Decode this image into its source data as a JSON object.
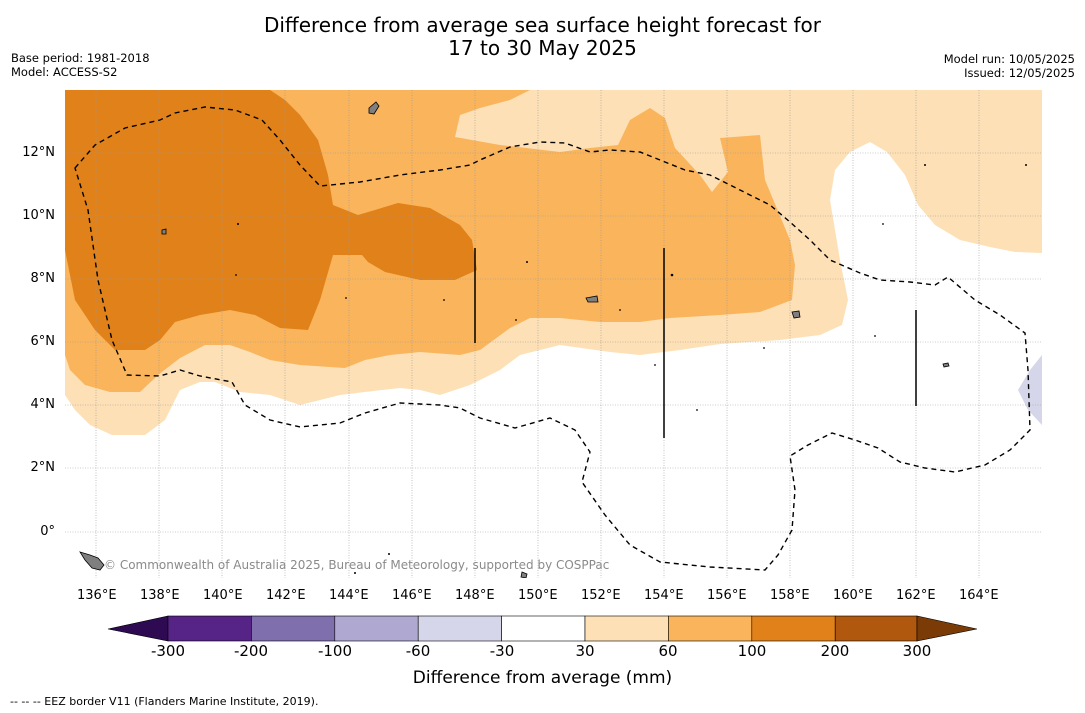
{
  "title": {
    "line1": "Difference from average sea surface height forecast for",
    "line2": "17 to 30 May 2025"
  },
  "meta": {
    "base_period": "Base period: 1981-2018",
    "model": "Model: ACCESS-S2",
    "model_run": "Model run: 10/05/2025",
    "issued": "Issued: 12/05/2025"
  },
  "map": {
    "lon_labels": [
      "136°E",
      "138°E",
      "140°E",
      "142°E",
      "144°E",
      "146°E",
      "148°E",
      "150°E",
      "152°E",
      "154°E",
      "156°E",
      "158°E",
      "160°E",
      "162°E",
      "164°E"
    ],
    "lat_labels": [
      "12°N",
      "10°N",
      "8°N",
      "6°N",
      "4°N",
      "2°N",
      "0°"
    ],
    "credit": "© Commonwealth of Australia 2025, Bureau of Meteorology, supported by COSPPac"
  },
  "colorbar": {
    "colors": [
      "#2d0a52",
      "#562387",
      "#7f6fad",
      "#afa9d1",
      "#d6d6ea",
      "#ffffff",
      "#fde0b6",
      "#f9b45c",
      "#e0811a",
      "#b0590e",
      "#7a3b06"
    ],
    "labels": [
      "-300",
      "-200",
      "-100",
      "-60",
      "-30",
      "30",
      "60",
      "100",
      "200",
      "300"
    ],
    "title": "Difference from average (mm)"
  },
  "footer": "-- -- -- EEZ border V11 (Flanders Marine Institute, 2019)."
}
